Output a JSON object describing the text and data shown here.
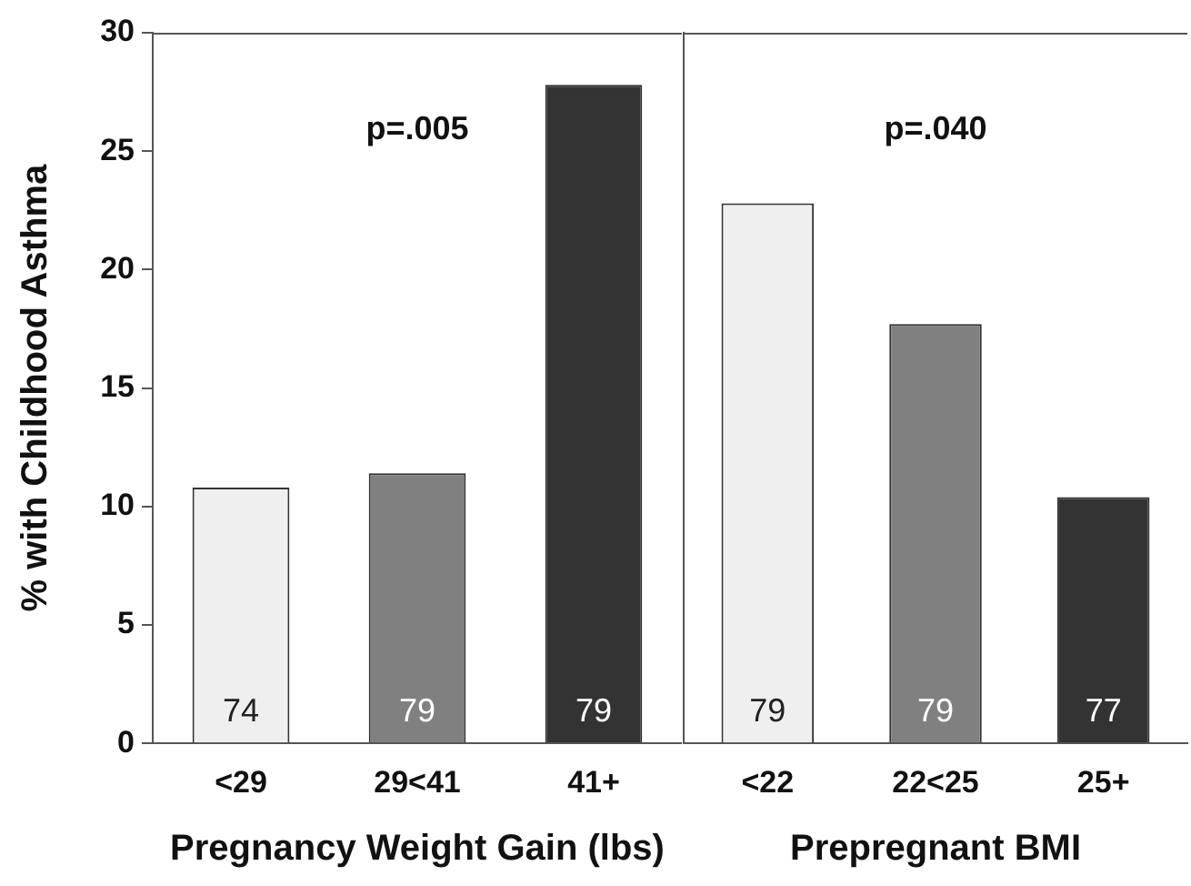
{
  "chart_data": [
    {
      "type": "bar",
      "categories": [
        "<29",
        "29<41",
        "41+"
      ],
      "values": [
        10.8,
        11.4,
        27.8
      ],
      "colors": [
        "#efefef",
        "#808080",
        "#333333"
      ],
      "xlabel": "Pregnancy Weight Gain (lbs)",
      "ylabel": "% with Childhood Asthma",
      "ylim": [
        0,
        30
      ],
      "yticks": [
        0,
        5,
        10,
        15,
        20,
        25,
        30
      ],
      "grid": false,
      "legend": false,
      "annotations": [
        "p=.005",
        "74",
        "79",
        "79"
      ]
    },
    {
      "type": "bar",
      "categories": [
        "<22",
        "22<25",
        "25+"
      ],
      "values": [
        22.8,
        17.7,
        10.4
      ],
      "colors": [
        "#efefef",
        "#808080",
        "#333333"
      ],
      "xlabel": "Prepregnant BMI",
      "ylim": [
        0,
        30
      ],
      "yticks": [
        0,
        5,
        10,
        15,
        20,
        25,
        30
      ],
      "tick_labels": "x",
      "grid": false,
      "legend": false,
      "annotations": [
        "p=.040",
        "79",
        "79",
        "77"
      ]
    }
  ]
}
